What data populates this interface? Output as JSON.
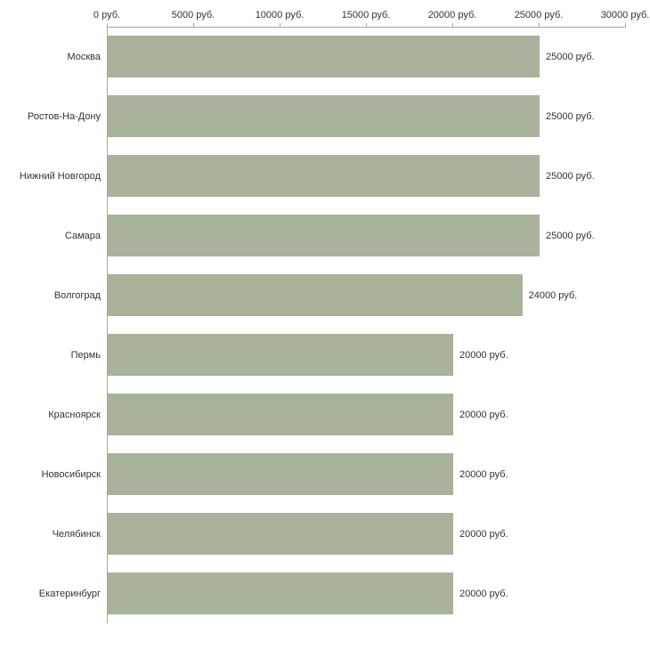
{
  "chart_data": {
    "type": "bar",
    "orientation": "horizontal",
    "title": "",
    "xlabel": "",
    "ylabel": "",
    "categories": [
      "Москва",
      "Ростов-На-Дону",
      "Нижний Новгород",
      "Самара",
      "Волгоград",
      "Пермь",
      "Красноярск",
      "Новосибирск",
      "Челябинск",
      "Екатеринбург"
    ],
    "values": [
      25000,
      25000,
      25000,
      25000,
      24000,
      20000,
      20000,
      20000,
      20000,
      20000
    ],
    "value_labels": [
      "25000 руб.",
      "25000 руб.",
      "25000 руб.",
      "25000 руб.",
      "24000 руб.",
      "20000 руб.",
      "20000 руб.",
      "20000 руб.",
      "20000 руб.",
      "20000 руб."
    ],
    "x_ticks": [
      0,
      5000,
      10000,
      15000,
      20000,
      25000,
      30000
    ],
    "x_tick_labels": [
      "0 руб.",
      "5000 руб.",
      "10000 руб.",
      "15000 руб.",
      "20000 руб.",
      "25000 руб.",
      "30000 руб."
    ],
    "xlim": [
      0,
      30000
    ],
    "grid": false,
    "legend": "none",
    "bar_color": "#a9b29a",
    "axis_color": "#a6a6a6",
    "text_color": "#333333"
  }
}
